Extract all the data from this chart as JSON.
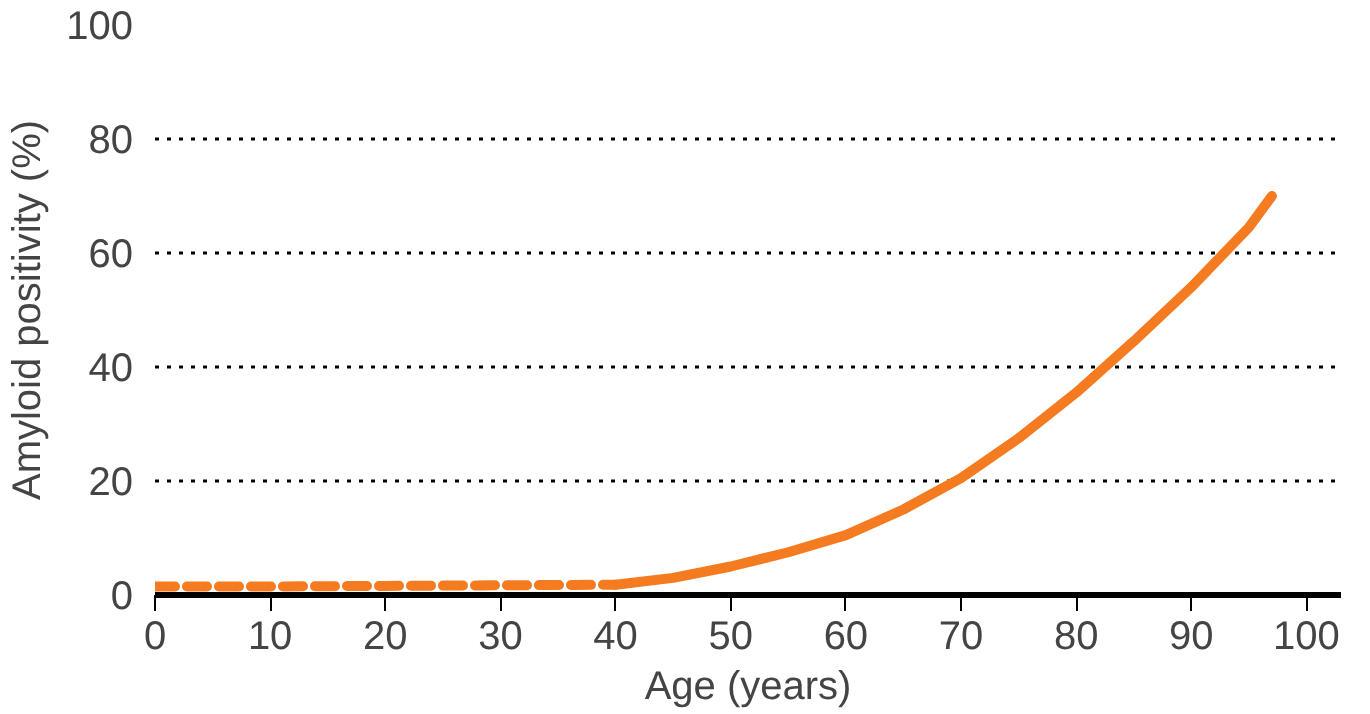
{
  "chart_data": {
    "type": "line",
    "xlabel": "Age (years)",
    "ylabel": "Amyloid positivity (%)",
    "series": [
      {
        "color": "#f47b20",
        "line_style": "dashed",
        "x": [
          0,
          10,
          20,
          30,
          40
        ],
        "values": [
          1.5,
          1.5,
          1.6,
          1.7,
          1.8
        ]
      },
      {
        "color": "#f47b20",
        "line_style": "solid",
        "x": [
          40,
          45,
          50,
          55,
          60,
          65,
          70,
          75,
          80,
          85,
          90,
          95,
          97
        ],
        "values": [
          1.8,
          3,
          5,
          7.5,
          10.5,
          15,
          20.5,
          27.5,
          35.5,
          44.5,
          54,
          64.5,
          70
        ]
      }
    ],
    "xlim": [
      0,
      103
    ],
    "ylim": [
      0,
      100
    ],
    "xticks": [
      0,
      10,
      20,
      30,
      40,
      50,
      60,
      70,
      80,
      90,
      100
    ],
    "yticks": [
      0,
      20,
      40,
      60,
      80,
      100
    ],
    "grid": "y",
    "marker": "none"
  }
}
